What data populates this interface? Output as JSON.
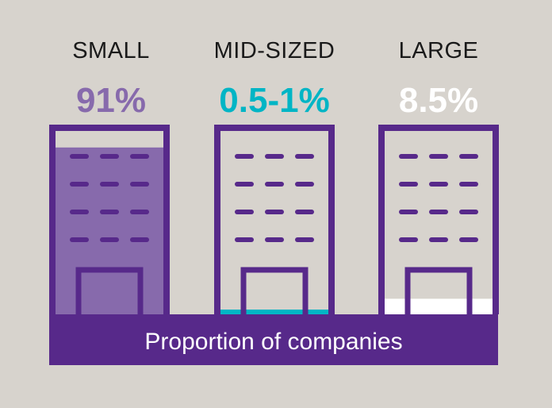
{
  "chart_data": {
    "type": "bar",
    "title": "",
    "categories": [
      "SMALL",
      "MID-SIZED",
      "LARGE"
    ],
    "value_labels": [
      "91%",
      "0.5-1%",
      "8.5%"
    ],
    "values": [
      91,
      0.75,
      8.5
    ],
    "xlabel": "Proportion of companies",
    "ylabel": "",
    "ylim": [
      0,
      100
    ],
    "colors": [
      "#876aac",
      "#00b5c5",
      "#ffffff"
    ],
    "frame_color": "#57298a",
    "background": "#d7d3cd",
    "grid": false,
    "legend": "none"
  }
}
